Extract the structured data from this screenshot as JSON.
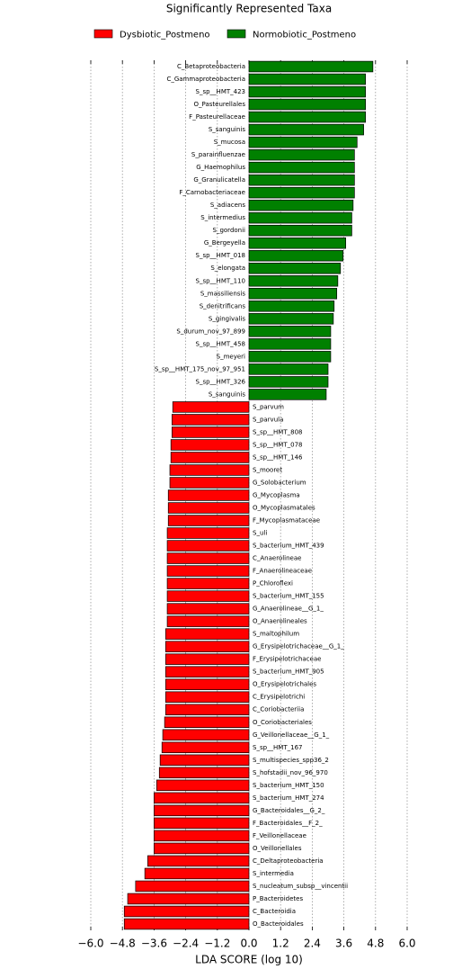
{
  "chart_data": {
    "type": "lda-bar",
    "title": "Significantly Represented Taxa",
    "x_label": "LDA SCORE (log 10)",
    "categories": [
      "C_Betaproteobacteria",
      "C_Gammaproteobacteria",
      "S_sp__HMT_423",
      "O_Pasteurellales",
      "F_Pasteurellaceae",
      "S_sanguinis",
      "S_mucosa",
      "S_parainfluenzae",
      "G_Haemophilus",
      "G_Granulicatella",
      "F_Carnobacteriaceae",
      "S_adiacens",
      "S_intermedius",
      "S_gordonii",
      "G_Bergeyella",
      "S_sp__HMT_018",
      "S_elongata",
      "S_sp__HMT_110",
      "S_massiliensis",
      "S_denitrificans",
      "S_gingivalis",
      "S_durum_nov_97_899",
      "S_sp__HMT_458",
      "S_meyeri",
      "S_sp__HMT_175_nov_97_951",
      "S_sp__HMT_326",
      "S_sanguinis",
      "S_parvum",
      "S_parvula",
      "S_sp__HMT_808",
      "S_sp__HMT_078",
      "S_sp__HMT_146",
      "S_mooret",
      "G_Solobacterium",
      "G_Mycoplasma",
      "O_Mycoplasmatales",
      "F_Mycoplasmataceae",
      "S_uli",
      "S_bacterium_HMT_439",
      "C_Anaerolineae",
      "F_Anaerolineaceae",
      "P_Chloroflexi",
      "S_bacterium_HMT_155",
      "G_Anaerolineae__G_1_",
      "O_Anaerolineales",
      "S_maltophilum",
      "G_Erysipelotrichaceae__G_1_",
      "F_Erysipelotrichaceae",
      "S_bacterium_HMT_905",
      "O_Erysipelotrichales",
      "C_Erysipelotrichi",
      "C_Coriobacteriia",
      "O_Coriobacteriales",
      "G_Veillonellaceae__G_1_",
      "S_sp__HMT_167",
      "S_multispecies_spp36_2",
      "S_hofstadii_nov_96_970",
      "S_bacterium_HMT_150",
      "S_bacterium_HMT_274",
      "G_Bacteroidales__G_2_",
      "F_Bacteroidales__F_2_",
      "F_Veillonellaceae",
      "O_Veillonellales",
      "C_Deltaproteobacteria",
      "S_intermedia",
      "S_nucleatum_subsp__vincentii",
      "P_Bacteroidetes",
      "C_Bacteroidia",
      "O_Bacteroidales"
    ],
    "series": [
      {
        "name": "Dysbiotic_Postmeno",
        "color": "#ff0000",
        "values": [
          null,
          null,
          null,
          null,
          null,
          null,
          null,
          null,
          null,
          null,
          null,
          null,
          null,
          null,
          null,
          null,
          null,
          null,
          null,
          null,
          null,
          null,
          null,
          null,
          null,
          null,
          null,
          -2.89,
          -2.92,
          -2.92,
          -2.96,
          -2.96,
          -3.0,
          -3.0,
          -3.06,
          -3.06,
          -3.06,
          -3.1,
          -3.1,
          -3.1,
          -3.1,
          -3.1,
          -3.1,
          -3.1,
          -3.1,
          -3.16,
          -3.16,
          -3.16,
          -3.16,
          -3.16,
          -3.16,
          -3.16,
          -3.2,
          -3.27,
          -3.3,
          -3.37,
          -3.4,
          -3.5,
          -3.6,
          -3.6,
          -3.6,
          -3.6,
          -3.6,
          -3.84,
          -3.95,
          -4.3,
          -4.6,
          -4.73,
          -4.73
        ]
      },
      {
        "name": "Normobiotic_Postmeno",
        "color": "#008000",
        "values": [
          4.7,
          4.42,
          4.42,
          4.42,
          4.42,
          4.35,
          4.1,
          4.0,
          4.0,
          4.0,
          4.0,
          3.95,
          3.9,
          3.9,
          3.67,
          3.57,
          3.47,
          3.37,
          3.33,
          3.23,
          3.2,
          3.1,
          3.1,
          3.1,
          3.0,
          3.0,
          2.93,
          null,
          null,
          null,
          null,
          null,
          null,
          null,
          null,
          null,
          null,
          null,
          null,
          null,
          null,
          null,
          null,
          null,
          null,
          null,
          null,
          null,
          null,
          null,
          null,
          null,
          null,
          null,
          null,
          null,
          null,
          null,
          null,
          null,
          null,
          null,
          null,
          null,
          null,
          null,
          null,
          null,
          null
        ]
      }
    ],
    "xlim": [
      -6.0,
      6.0
    ],
    "xticks": [
      {
        "value": -6.0,
        "label": "−6.0"
      },
      {
        "value": -4.8,
        "label": "−4.8"
      },
      {
        "value": -3.6,
        "label": "−3.6"
      },
      {
        "value": -2.4,
        "label": "−2.4"
      },
      {
        "value": -1.2,
        "label": "−1.2"
      },
      {
        "value": 0,
        "label": "0.0"
      },
      1.2,
      2.4,
      3.6,
      4.8,
      {
        "value": 6.0,
        "label": "6.0"
      }
    ],
    "grid": true
  }
}
